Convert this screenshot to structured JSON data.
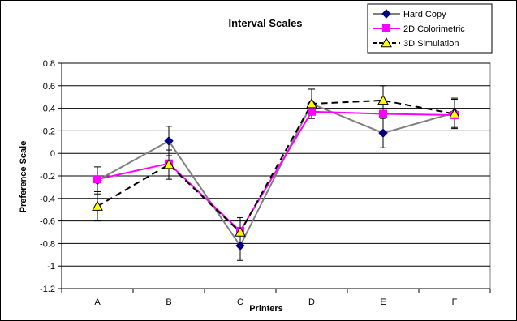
{
  "chart_data": {
    "type": "line",
    "title": "Interval Scales",
    "xlabel": "Printers",
    "ylabel": "Preference Scale",
    "categories": [
      "A",
      "B",
      "C",
      "D",
      "E",
      "F"
    ],
    "ylim": [
      -1.2,
      0.8
    ],
    "yticks": [
      -1.2,
      -1,
      -0.8,
      -0.6,
      -0.4,
      -0.2,
      0,
      0.2,
      0.4,
      0.6,
      0.8
    ],
    "grid": true,
    "legend_position": "top-right",
    "series": [
      {
        "name": "Hard Copy",
        "color": "#808080",
        "marker_color": "#000080",
        "marker": "diamond",
        "line_style": "solid",
        "values": [
          -0.24,
          0.11,
          -0.82,
          0.44,
          0.18,
          0.36
        ],
        "errors": [
          0.12,
          0.13,
          0.13,
          0.13,
          0.13,
          0.13
        ]
      },
      {
        "name": "2D Colorimetric",
        "color": "#FF00FF",
        "marker_color": "#FF00FF",
        "marker": "square",
        "line_style": "solid",
        "values": [
          -0.23,
          -0.09,
          -0.69,
          0.37,
          0.35,
          0.34
        ],
        "errors": []
      },
      {
        "name": "3D Simulation",
        "color": "#000000",
        "marker_color": "#FFFF00",
        "marker": "triangle",
        "line_style": "dashed",
        "values": [
          -0.47,
          -0.1,
          -0.7,
          0.44,
          0.47,
          0.35
        ],
        "errors": [
          0.13,
          0.13,
          0.13,
          0.13,
          0.13,
          0.13
        ]
      }
    ]
  }
}
